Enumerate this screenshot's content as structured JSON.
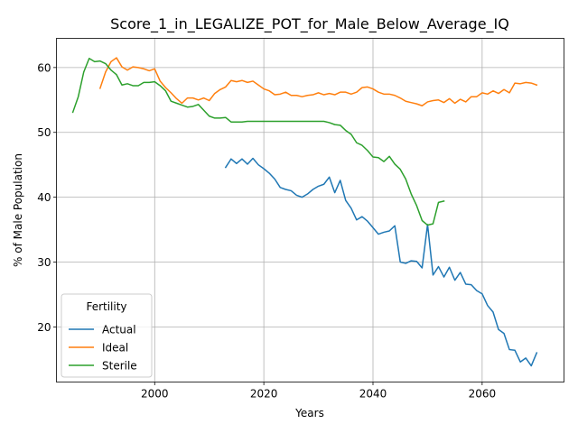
{
  "chart_data": {
    "type": "line",
    "title": "Score_1_in_LEGALIZE_POT_for_Male_Below_Average_IQ",
    "xlabel": "Years",
    "ylabel": "% of Male Population",
    "xlim": [
      1982,
      2075
    ],
    "ylim": [
      11.5,
      64.5
    ],
    "xticks": [
      2000,
      2020,
      2040,
      2060
    ],
    "yticks": [
      20,
      30,
      40,
      50,
      60
    ],
    "grid": true,
    "legend": {
      "title": "Fertility",
      "placement": "lower-left"
    },
    "series": [
      {
        "name": "Actual",
        "color": "#1f77b4",
        "points": [
          [
            2013,
            44.6
          ],
          [
            2014,
            45.9
          ],
          [
            2015,
            45.2
          ],
          [
            2016,
            45.9
          ],
          [
            2017,
            45.1
          ],
          [
            2018,
            46.0
          ],
          [
            2019,
            45.0
          ],
          [
            2020,
            44.4
          ],
          [
            2021,
            43.7
          ],
          [
            2022,
            42.8
          ],
          [
            2023,
            41.5
          ],
          [
            2024,
            41.2
          ],
          [
            2025,
            41.0
          ],
          [
            2026,
            40.3
          ],
          [
            2027,
            40.0
          ],
          [
            2028,
            40.5
          ],
          [
            2029,
            41.2
          ],
          [
            2030,
            41.7
          ],
          [
            2031,
            42.0
          ],
          [
            2032,
            43.1
          ],
          [
            2033,
            40.7
          ],
          [
            2034,
            42.6
          ],
          [
            2035,
            39.5
          ],
          [
            2036,
            38.3
          ],
          [
            2037,
            36.5
          ],
          [
            2038,
            37.0
          ],
          [
            2039,
            36.3
          ],
          [
            2040,
            35.3
          ],
          [
            2041,
            34.3
          ],
          [
            2042,
            34.6
          ],
          [
            2043,
            34.8
          ],
          [
            2044,
            35.6
          ],
          [
            2045,
            30.0
          ],
          [
            2046,
            29.8
          ],
          [
            2047,
            30.2
          ],
          [
            2048,
            30.1
          ],
          [
            2049,
            29.1
          ],
          [
            2050,
            35.8
          ],
          [
            2051,
            28.0
          ],
          [
            2052,
            29.3
          ],
          [
            2053,
            27.7
          ],
          [
            2054,
            29.2
          ],
          [
            2055,
            27.2
          ],
          [
            2056,
            28.4
          ],
          [
            2057,
            26.6
          ],
          [
            2058,
            26.5
          ],
          [
            2059,
            25.6
          ],
          [
            2060,
            25.1
          ],
          [
            2061,
            23.3
          ],
          [
            2062,
            22.3
          ],
          [
            2063,
            19.6
          ],
          [
            2064,
            19.0
          ],
          [
            2065,
            16.5
          ],
          [
            2066,
            16.4
          ],
          [
            2067,
            14.6
          ],
          [
            2068,
            15.2
          ],
          [
            2069,
            14.0
          ],
          [
            2070,
            16.0
          ]
        ]
      },
      {
        "name": "Ideal",
        "color": "#ff7f0e",
        "points": [
          [
            1990,
            56.8
          ],
          [
            1991,
            59.3
          ],
          [
            1992,
            60.9
          ],
          [
            1993,
            61.5
          ],
          [
            1994,
            60.1
          ],
          [
            1995,
            59.6
          ],
          [
            1996,
            60.1
          ],
          [
            1997,
            60.0
          ],
          [
            1998,
            59.8
          ],
          [
            1999,
            59.5
          ],
          [
            2000,
            59.8
          ],
          [
            2001,
            57.9
          ],
          [
            2002,
            56.9
          ],
          [
            2003,
            56.1
          ],
          [
            2004,
            55.2
          ],
          [
            2005,
            54.5
          ],
          [
            2006,
            55.3
          ],
          [
            2007,
            55.3
          ],
          [
            2008,
            55.0
          ],
          [
            2009,
            55.3
          ],
          [
            2010,
            54.9
          ],
          [
            2011,
            56.0
          ],
          [
            2012,
            56.6
          ],
          [
            2013,
            57.0
          ],
          [
            2014,
            58.0
          ],
          [
            2015,
            57.8
          ],
          [
            2016,
            58.0
          ],
          [
            2017,
            57.7
          ],
          [
            2018,
            57.9
          ],
          [
            2019,
            57.3
          ],
          [
            2020,
            56.7
          ],
          [
            2021,
            56.4
          ],
          [
            2022,
            55.8
          ],
          [
            2023,
            55.9
          ],
          [
            2024,
            56.2
          ],
          [
            2025,
            55.7
          ],
          [
            2026,
            55.7
          ],
          [
            2027,
            55.5
          ],
          [
            2028,
            55.7
          ],
          [
            2029,
            55.8
          ],
          [
            2030,
            56.1
          ],
          [
            2031,
            55.8
          ],
          [
            2032,
            56.0
          ],
          [
            2033,
            55.8
          ],
          [
            2034,
            56.2
          ],
          [
            2035,
            56.2
          ],
          [
            2036,
            55.9
          ],
          [
            2037,
            56.2
          ],
          [
            2038,
            56.9
          ],
          [
            2039,
            57.0
          ],
          [
            2040,
            56.7
          ],
          [
            2041,
            56.2
          ],
          [
            2042,
            55.9
          ],
          [
            2043,
            55.9
          ],
          [
            2044,
            55.7
          ],
          [
            2045,
            55.3
          ],
          [
            2046,
            54.8
          ],
          [
            2047,
            54.6
          ],
          [
            2048,
            54.4
          ],
          [
            2049,
            54.1
          ],
          [
            2050,
            54.7
          ],
          [
            2051,
            54.9
          ],
          [
            2052,
            55.0
          ],
          [
            2053,
            54.6
          ],
          [
            2054,
            55.2
          ],
          [
            2055,
            54.5
          ],
          [
            2056,
            55.1
          ],
          [
            2057,
            54.7
          ],
          [
            2058,
            55.5
          ],
          [
            2059,
            55.5
          ],
          [
            2060,
            56.1
          ],
          [
            2061,
            55.9
          ],
          [
            2062,
            56.4
          ],
          [
            2063,
            56.0
          ],
          [
            2064,
            56.6
          ],
          [
            2065,
            56.1
          ],
          [
            2066,
            57.6
          ],
          [
            2067,
            57.5
          ],
          [
            2068,
            57.7
          ],
          [
            2069,
            57.6
          ],
          [
            2070,
            57.3
          ]
        ]
      },
      {
        "name": "Sterile",
        "color": "#2ca02c",
        "points": [
          [
            1985,
            53.1
          ],
          [
            1986,
            55.5
          ],
          [
            1987,
            59.3
          ],
          [
            1988,
            61.4
          ],
          [
            1989,
            60.9
          ],
          [
            1990,
            61.0
          ],
          [
            1991,
            60.6
          ],
          [
            1992,
            59.6
          ],
          [
            1993,
            58.9
          ],
          [
            1994,
            57.3
          ],
          [
            1995,
            57.5
          ],
          [
            1996,
            57.2
          ],
          [
            1997,
            57.2
          ],
          [
            1998,
            57.7
          ],
          [
            1999,
            57.7
          ],
          [
            2000,
            57.8
          ],
          [
            2001,
            57.2
          ],
          [
            2002,
            56.4
          ],
          [
            2003,
            54.8
          ],
          [
            2004,
            54.5
          ],
          [
            2005,
            54.2
          ],
          [
            2006,
            53.9
          ],
          [
            2007,
            54.0
          ],
          [
            2008,
            54.3
          ],
          [
            2009,
            53.4
          ],
          [
            2010,
            52.5
          ],
          [
            2011,
            52.2
          ],
          [
            2012,
            52.2
          ],
          [
            2013,
            52.3
          ],
          [
            2014,
            51.6
          ],
          [
            2015,
            51.6
          ],
          [
            2016,
            51.6
          ],
          [
            2017,
            51.7
          ],
          [
            2018,
            51.7
          ],
          [
            2019,
            51.7
          ],
          [
            2020,
            51.7
          ],
          [
            2021,
            51.7
          ],
          [
            2022,
            51.7
          ],
          [
            2023,
            51.7
          ],
          [
            2024,
            51.7
          ],
          [
            2025,
            51.7
          ],
          [
            2026,
            51.7
          ],
          [
            2027,
            51.7
          ],
          [
            2028,
            51.7
          ],
          [
            2029,
            51.7
          ],
          [
            2030,
            51.7
          ],
          [
            2031,
            51.7
          ],
          [
            2032,
            51.5
          ],
          [
            2033,
            51.2
          ],
          [
            2034,
            51.1
          ],
          [
            2035,
            50.3
          ],
          [
            2036,
            49.7
          ],
          [
            2037,
            48.4
          ],
          [
            2038,
            48.0
          ],
          [
            2039,
            47.2
          ],
          [
            2040,
            46.2
          ],
          [
            2041,
            46.1
          ],
          [
            2042,
            45.5
          ],
          [
            2043,
            46.3
          ],
          [
            2044,
            45.1
          ],
          [
            2045,
            44.3
          ],
          [
            2046,
            42.8
          ],
          [
            2047,
            40.5
          ],
          [
            2048,
            38.7
          ],
          [
            2049,
            36.4
          ],
          [
            2050,
            35.7
          ],
          [
            2051,
            35.9
          ],
          [
            2052,
            39.2
          ],
          [
            2053,
            39.4
          ]
        ]
      }
    ]
  }
}
